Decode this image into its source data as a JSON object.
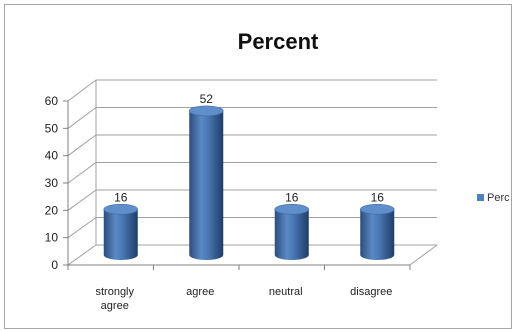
{
  "chart_data": {
    "type": "bar",
    "style": "3d-cylinder",
    "title": "Percent",
    "categories": [
      "strongly agree",
      "agree",
      "neutral",
      "disagree"
    ],
    "category_lines": [
      [
        "strongly",
        "agree"
      ],
      [
        "agree"
      ],
      [
        "neutral"
      ],
      [
        "disagree"
      ]
    ],
    "series": [
      {
        "name": "Perc",
        "values": [
          16,
          52,
          16,
          16
        ]
      }
    ],
    "data_labels": [
      "16",
      "52",
      "16",
      "16"
    ],
    "ylim": [
      0,
      60
    ],
    "yticks": [
      "0",
      "10",
      "20",
      "30",
      "40",
      "50",
      "60"
    ],
    "grid": true,
    "legend_position": "right",
    "bar_color": "#4f81bd"
  }
}
